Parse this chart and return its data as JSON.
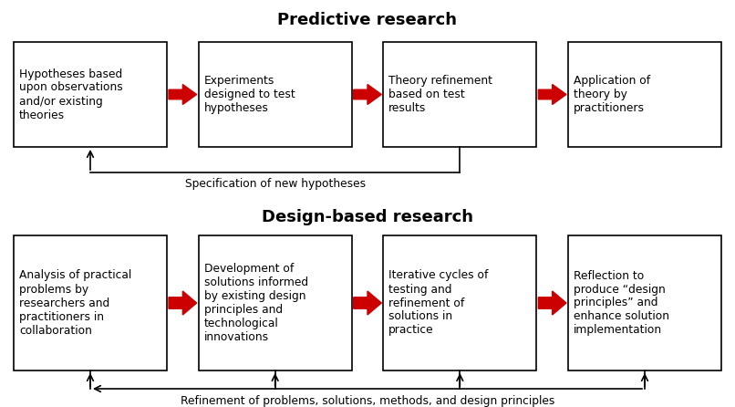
{
  "title_top": "Predictive research",
  "title_bottom": "Design-based research",
  "bg_color": "#ffffff",
  "box_color": "#ffffff",
  "box_edge_color": "#000000",
  "arrow_color": "#cc0000",
  "line_color": "#000000",
  "text_color": "#000000",
  "top_boxes": [
    "Hypotheses based\nupon observations\nand/or existing\ntheories",
    "Experiments\ndesigned to test\nhypotheses",
    "Theory refinement\nbased on test\nresults",
    "Application of\ntheory by\npractitioners"
  ],
  "bottom_boxes": [
    "Analysis of practical\nproblems by\nresearchers and\npractitioners in\ncollaboration",
    "Development of\nsolutions informed\nby existing design\nprinciples and\ntechnological\ninnovations",
    "Iterative cycles of\ntesting and\nrefinement of\nsolutions in\npractice",
    "Reflection to\nproduce “design\nprinciples” and\nenhance solution\nimplementation"
  ],
  "feedback_top": "Specification of new hypotheses",
  "feedback_bottom": "Refinement of problems, methods, and design principles",
  "figsize": [
    8.06,
    4.46
  ],
  "dpi": 100
}
